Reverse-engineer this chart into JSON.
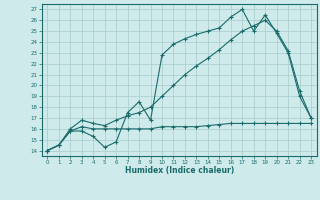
{
  "xlabel": "Humidex (Indice chaleur)",
  "bg_color": "#ceeaea",
  "grid_color": "#aed0d0",
  "line_color": "#1a6b6b",
  "xlim": [
    -0.5,
    23.5
  ],
  "ylim": [
    13.5,
    27.5
  ],
  "xticks": [
    0,
    1,
    2,
    3,
    4,
    5,
    6,
    7,
    8,
    9,
    10,
    11,
    12,
    13,
    14,
    15,
    16,
    17,
    18,
    19,
    20,
    21,
    22,
    23
  ],
  "yticks": [
    14,
    15,
    16,
    17,
    18,
    19,
    20,
    21,
    22,
    23,
    24,
    25,
    26,
    27
  ],
  "line1_x": [
    0,
    1,
    2,
    3,
    4,
    5,
    6,
    7,
    8,
    9,
    10,
    11,
    12,
    13,
    14,
    15,
    16,
    17,
    18,
    19,
    20,
    21,
    22,
    23
  ],
  "line1_y": [
    14,
    14.5,
    15.8,
    15.8,
    15.3,
    14.3,
    14.8,
    17.5,
    18.5,
    16.8,
    22.8,
    23.8,
    24.3,
    24.7,
    25.0,
    25.3,
    26.3,
    27.0,
    25.0,
    26.5,
    24.8,
    23.0,
    19.0,
    17.0
  ],
  "line2_x": [
    0,
    1,
    2,
    3,
    4,
    5,
    6,
    7,
    8,
    9,
    10,
    11,
    12,
    13,
    14,
    15,
    16,
    17,
    18,
    19,
    20,
    21,
    22,
    23
  ],
  "line2_y": [
    14,
    14.5,
    16.0,
    16.8,
    16.5,
    16.3,
    16.8,
    17.2,
    17.5,
    18.0,
    19.0,
    20.0,
    21.0,
    21.8,
    22.5,
    23.3,
    24.2,
    25.0,
    25.5,
    26.0,
    25.0,
    23.2,
    19.5,
    17.0
  ],
  "line3_x": [
    0,
    1,
    2,
    3,
    4,
    5,
    6,
    7,
    8,
    9,
    10,
    11,
    12,
    13,
    14,
    15,
    16,
    17,
    18,
    19,
    20,
    21,
    22,
    23
  ],
  "line3_y": [
    14,
    14.5,
    15.8,
    16.2,
    16.0,
    16.0,
    16.0,
    16.0,
    16.0,
    16.0,
    16.2,
    16.2,
    16.2,
    16.2,
    16.3,
    16.4,
    16.5,
    16.5,
    16.5,
    16.5,
    16.5,
    16.5,
    16.5,
    16.5
  ]
}
